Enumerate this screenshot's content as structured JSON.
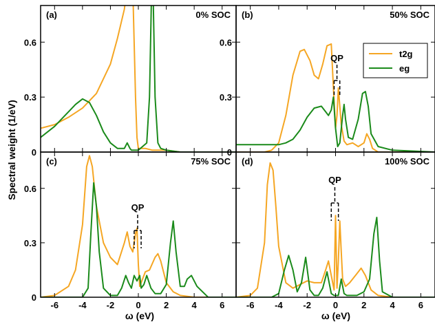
{
  "figure": {
    "ylabel": "Spectral weight (1/eV)",
    "xlabel": "ω (eV)",
    "legend": {
      "t2g": "t2g",
      "eg": "eg",
      "placement": "inside panel (b), top-right"
    },
    "colors": {
      "t2g": "#f5a623",
      "eg": "#1a8a1a",
      "axes": "#000000"
    },
    "qp_label": "QP"
  },
  "chart_data": [
    {
      "type": "line",
      "panel": "(a)",
      "soc": "0% SOC",
      "xlim": [
        -7,
        7
      ],
      "ylim": [
        0,
        0.8
      ],
      "xticks": [
        -6,
        -4,
        -2,
        0,
        2,
        4,
        6
      ],
      "yticks": [
        0,
        0.3,
        0.6
      ],
      "ytick_labels": [
        "0",
        "0.3",
        "0.6"
      ],
      "series": [
        {
          "name": "t2g",
          "x": [
            -7,
            -6,
            -5,
            -4,
            -3,
            -2,
            -1.5,
            -1,
            -0.8,
            -0.6,
            -0.4,
            -0.3,
            -0.2,
            -0.1,
            0,
            0.5,
            1,
            2,
            3,
            7
          ],
          "y": [
            0.13,
            0.15,
            0.19,
            0.24,
            0.32,
            0.48,
            0.62,
            0.78,
            0.9,
            1.1,
            0.9,
            0.6,
            0.3,
            0.08,
            0.02,
            0.02,
            0.01,
            0.01,
            0,
            0
          ]
        },
        {
          "name": "eg",
          "x": [
            -7,
            -6,
            -5.5,
            -5,
            -4.5,
            -4,
            -3.5,
            -3,
            -2.5,
            -2,
            -1.5,
            -1,
            -0.8,
            -0.6,
            -0.5,
            0,
            0.6,
            0.8,
            0.9,
            1,
            1.1,
            1.2,
            1.4,
            1.6,
            2,
            3,
            7
          ],
          "y": [
            0.08,
            0.14,
            0.18,
            0.22,
            0.26,
            0.29,
            0.27,
            0.2,
            0.11,
            0.05,
            0.02,
            0.02,
            0.05,
            0.02,
            0.01,
            0.01,
            0.05,
            0.3,
            0.7,
            1.1,
            0.7,
            0.3,
            0.05,
            0.02,
            0.01,
            0,
            0
          ]
        }
      ]
    },
    {
      "type": "line",
      "panel": "(b)",
      "soc": "50% SOC",
      "xlim": [
        -7,
        7
      ],
      "ylim": [
        0,
        0.8
      ],
      "xticks": [
        -6,
        -4,
        -2,
        0,
        2,
        4,
        6
      ],
      "yticks": [
        0,
        0.3,
        0.6
      ],
      "ytick_labels": [
        "0",
        "0.3",
        "0.6"
      ],
      "qp_window": [
        -0.1,
        0.3
      ],
      "series": [
        {
          "name": "t2g",
          "x": [
            -7,
            -5,
            -4.5,
            -4,
            -3.5,
            -3,
            -2.5,
            -2.2,
            -1.8,
            -1.5,
            -1.2,
            -0.9,
            -0.6,
            -0.3,
            -0.15,
            0,
            0.1,
            0.2,
            0.3,
            0.4,
            0.6,
            0.8,
            1.2,
            1.6,
            2,
            2.2,
            2.4,
            2.6,
            3,
            4,
            7
          ],
          "y": [
            0,
            0,
            0.01,
            0.05,
            0.2,
            0.42,
            0.55,
            0.56,
            0.5,
            0.42,
            0.4,
            0.48,
            0.58,
            0.59,
            0.35,
            0.13,
            0.2,
            0.35,
            0.25,
            0.15,
            0.06,
            0.04,
            0.05,
            0.03,
            0.05,
            0.1,
            0.07,
            0.02,
            0,
            0,
            0
          ]
        },
        {
          "name": "eg",
          "x": [
            -7,
            -5,
            -4,
            -3.5,
            -3,
            -2.5,
            -2,
            -1.5,
            -1,
            -0.7,
            -0.5,
            -0.3,
            -0.15,
            0,
            0.15,
            0.3,
            0.5,
            0.6,
            0.7,
            0.9,
            1.2,
            1.6,
            1.9,
            2.1,
            2.3,
            2.5,
            3,
            4,
            7
          ],
          "y": [
            0.04,
            0.04,
            0.04,
            0.05,
            0.07,
            0.12,
            0.19,
            0.24,
            0.25,
            0.22,
            0.2,
            0.23,
            0.3,
            0.13,
            0.03,
            0.05,
            0.2,
            0.26,
            0.18,
            0.08,
            0.07,
            0.18,
            0.32,
            0.33,
            0.25,
            0.1,
            0.03,
            0.01,
            0
          ]
        }
      ]
    },
    {
      "type": "line",
      "panel": "(c)",
      "soc": "75% SOC",
      "xlim": [
        -7,
        7
      ],
      "ylim": [
        0,
        0.8
      ],
      "xticks": [
        -6,
        -4,
        -2,
        0,
        2,
        4,
        6
      ],
      "xtick_labels": [
        "-6",
        "-4",
        "-2",
        "0",
        "2",
        "4",
        "6"
      ],
      "yticks": [
        0,
        0.3,
        0.6
      ],
      "ytick_labels": [
        "0",
        "0.3",
        "0.6"
      ],
      "qp_window": [
        -0.3,
        0.2
      ],
      "series": [
        {
          "name": "t2g",
          "x": [
            -7,
            -6,
            -5,
            -4.5,
            -4,
            -3.7,
            -3.5,
            -3.3,
            -3,
            -2.5,
            -2,
            -1.5,
            -1,
            -0.8,
            -0.6,
            -0.4,
            -0.2,
            -0.1,
            0,
            0.1,
            0.3,
            0.5,
            0.8,
            1.2,
            1.4,
            1.6,
            2,
            2.5,
            3,
            4,
            7
          ],
          "y": [
            0,
            0.01,
            0.06,
            0.15,
            0.4,
            0.72,
            0.78,
            0.72,
            0.5,
            0.3,
            0.22,
            0.18,
            0.3,
            0.36,
            0.28,
            0.25,
            0.35,
            0.38,
            0.18,
            0.06,
            0.1,
            0.14,
            0.15,
            0.22,
            0.24,
            0.2,
            0.08,
            0.03,
            0.01,
            0,
            0
          ]
        },
        {
          "name": "eg",
          "x": [
            -7,
            -4,
            -3.6,
            -3.4,
            -3.2,
            -3,
            -2.8,
            -2.5,
            -2,
            -1.5,
            -1.2,
            -0.9,
            -0.7,
            -0.5,
            -0.3,
            -0.1,
            0.1,
            0.2,
            0.4,
            0.6,
            0.9,
            1.2,
            1.6,
            2,
            2.3,
            2.5,
            2.7,
            3,
            3.3,
            3.5,
            3.8,
            4.2,
            5,
            7
          ],
          "y": [
            0,
            0,
            0.05,
            0.35,
            0.63,
            0.5,
            0.25,
            0.05,
            0.01,
            0.01,
            0.05,
            0.12,
            0.08,
            0.05,
            0.12,
            0.09,
            0.12,
            0.05,
            0.07,
            0.12,
            0.05,
            0.02,
            0.02,
            0.07,
            0.3,
            0.42,
            0.25,
            0.06,
            0.06,
            0.1,
            0.12,
            0.06,
            0,
            0
          ]
        }
      ]
    },
    {
      "type": "line",
      "panel": "(d)",
      "soc": "100% SOC",
      "xlim": [
        -7,
        7
      ],
      "ylim": [
        0,
        0.8
      ],
      "xticks": [
        -6,
        -4,
        -2,
        0,
        2,
        4,
        6
      ],
      "xtick_labels": [
        "-6",
        "-4",
        "-2",
        "0",
        "2",
        "4",
        "6"
      ],
      "yticks": [
        0,
        0.3,
        0.6
      ],
      "qp_window": [
        -0.3,
        0.2
      ],
      "series": [
        {
          "name": "t2g",
          "x": [
            -7,
            -6,
            -5.5,
            -5,
            -4.8,
            -4.6,
            -4.4,
            -4.2,
            -4,
            -3.5,
            -3,
            -2.5,
            -2,
            -1.5,
            -1,
            -0.7,
            -0.5,
            -0.3,
            -0.1,
            0,
            0.1,
            0.2,
            0.3,
            0.4,
            0.5,
            0.7,
            1,
            1.5,
            1.8,
            2.1,
            2.5,
            3,
            4,
            7
          ],
          "y": [
            0,
            0.01,
            0.05,
            0.3,
            0.62,
            0.74,
            0.7,
            0.5,
            0.28,
            0.08,
            0.05,
            0.07,
            0.09,
            0.08,
            0.08,
            0.15,
            0.2,
            0.12,
            0.04,
            0.45,
            0.05,
            0.2,
            0.42,
            0.25,
            0.1,
            0.06,
            0.08,
            0.13,
            0.16,
            0.12,
            0.04,
            0.01,
            0,
            0
          ]
        },
        {
          "name": "eg",
          "x": [
            -7,
            -4.5,
            -4,
            -3.6,
            -3.3,
            -3,
            -2.7,
            -2.4,
            -2.1,
            -1.8,
            -1.5,
            -1.2,
            -0.9,
            -0.6,
            -0.3,
            -0.1,
            0.2,
            0.4,
            0.6,
            0.8,
            1,
            1.5,
            2,
            2.4,
            2.7,
            2.9,
            3.1,
            3.3,
            4,
            7
          ],
          "y": [
            0,
            0,
            0.02,
            0.15,
            0.23,
            0.15,
            0.03,
            0.08,
            0.22,
            0.04,
            0.01,
            0.01,
            0.05,
            0.14,
            0.02,
            0.01,
            0.01,
            0.1,
            0.02,
            0.01,
            0.01,
            0.01,
            0.03,
            0.1,
            0.35,
            0.44,
            0.2,
            0.03,
            0,
            0
          ]
        }
      ]
    }
  ]
}
